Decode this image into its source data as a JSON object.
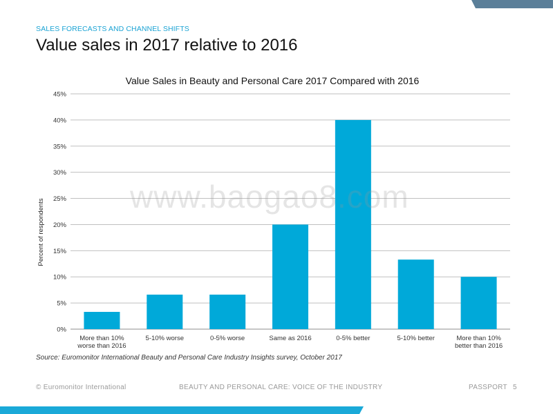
{
  "slide": {
    "section_label": "SALES FORECASTS AND CHANNEL SHIFTS",
    "title": "Value sales in 2017 relative to 2016",
    "watermark": "www.baogao8.com",
    "source": "Source: Euromonitor International Beauty and Personal Care Industry Insights survey, October 2017"
  },
  "footer": {
    "left": "© Euromonitor International",
    "center": "BEAUTY AND PERSONAL CARE: VOICE OF THE INDUSTRY",
    "right": "PASSPORT",
    "page": "5"
  },
  "colors": {
    "bar": "#00a9d9",
    "accent": "#1aa3d4",
    "top_accent": "#5b7f99",
    "gridline": "#bfbfbf"
  },
  "chart_data": {
    "type": "bar",
    "title": "Value Sales in Beauty and Personal Care 2017 Compared with 2016",
    "xlabel": "",
    "ylabel": "Percent of respondents",
    "ylim": [
      0,
      45
    ],
    "yticks": [
      0,
      5,
      10,
      15,
      20,
      25,
      30,
      35,
      40,
      45
    ],
    "ytick_labels": [
      "0%",
      "5%",
      "10%",
      "15%",
      "20%",
      "25%",
      "30%",
      "35%",
      "40%",
      "45%"
    ],
    "grid": true,
    "legend": "none",
    "categories": [
      [
        "More than 10%",
        "worse than 2016"
      ],
      [
        "5-10% worse"
      ],
      [
        "0-5% worse"
      ],
      [
        "Same as 2016"
      ],
      [
        "0-5% better"
      ],
      [
        "5-10% better"
      ],
      [
        "More than 10%",
        "better than 2016"
      ]
    ],
    "values": [
      3.3,
      6.6,
      6.6,
      20,
      40,
      13.3,
      10
    ]
  }
}
